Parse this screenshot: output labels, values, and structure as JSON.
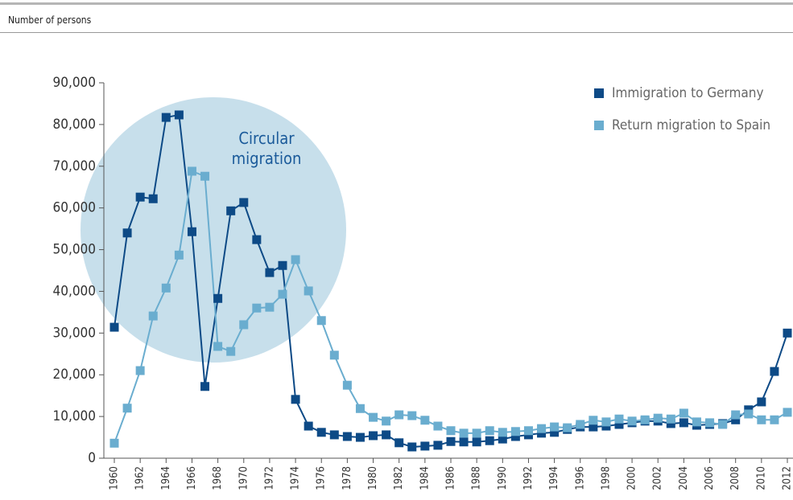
{
  "chart_data": {
    "type": "line",
    "y_axis_label": "Number of persons",
    "annotation": "Circular migration",
    "x": [
      1960,
      1961,
      1962,
      1963,
      1964,
      1965,
      1966,
      1967,
      1968,
      1969,
      1970,
      1971,
      1972,
      1973,
      1974,
      1975,
      1976,
      1977,
      1978,
      1979,
      1980,
      1981,
      1982,
      1983,
      1984,
      1985,
      1986,
      1987,
      1988,
      1989,
      1990,
      1991,
      1992,
      1993,
      1994,
      1995,
      1996,
      1997,
      1998,
      1999,
      2000,
      2001,
      2002,
      2003,
      2004,
      2005,
      2006,
      2007,
      2008,
      2009,
      2010,
      2011,
      2012
    ],
    "series": [
      {
        "name": "Immigration to Germany",
        "color": "#0d4a86",
        "values": [
          31400,
          54000,
          62600,
          62200,
          81700,
          82300,
          54300,
          17200,
          38300,
          59300,
          61300,
          52400,
          44500,
          46200,
          14100,
          7700,
          6200,
          5600,
          5200,
          5000,
          5400,
          5600,
          3700,
          2700,
          2900,
          3100,
          4000,
          3900,
          3900,
          4200,
          4600,
          5200,
          5600,
          6000,
          6200,
          6900,
          7500,
          7500,
          7700,
          8100,
          8500,
          8900,
          8900,
          8300,
          8500,
          7900,
          8100,
          8300,
          9200,
          11600,
          13500,
          20800,
          30000
        ]
      },
      {
        "name": "Return migration to Spain",
        "color": "#6aadcf",
        "values": [
          3600,
          12000,
          21000,
          34100,
          40800,
          48700,
          68800,
          67600,
          26800,
          25600,
          32000,
          36000,
          36200,
          39300,
          47600,
          40100,
          33000,
          24700,
          17500,
          11900,
          9800,
          8900,
          10400,
          10200,
          9100,
          7700,
          6600,
          6000,
          6000,
          6600,
          6200,
          6400,
          6600,
          7100,
          7500,
          7300,
          8100,
          9100,
          8700,
          9400,
          8900,
          9200,
          9600,
          9400,
          10800,
          8700,
          8500,
          8100,
          10400,
          10600,
          9200,
          9200,
          11000
        ]
      }
    ],
    "xlim": [
      1960,
      2012
    ],
    "xticks": [
      1960,
      1962,
      1964,
      1966,
      1968,
      1970,
      1972,
      1974,
      1976,
      1978,
      1980,
      1982,
      1984,
      1986,
      1988,
      1990,
      1992,
      1994,
      1996,
      1998,
      2000,
      2002,
      2004,
      2006,
      2008,
      2010,
      2012
    ],
    "ylim": [
      0,
      90000
    ],
    "yticks": [
      0,
      {
        "value": 10000,
        "label": "10,000"
      },
      {
        "value": 20000,
        "label": "20,000"
      },
      {
        "value": 30000,
        "label": "30,000"
      },
      {
        "value": 40000,
        "label": "40,000"
      },
      {
        "value": 50000,
        "label": "50,000"
      },
      {
        "value": 60000,
        "label": "60,000"
      },
      {
        "value": 70000,
        "label": "70,000"
      },
      {
        "value": 80000,
        "label": "80,000"
      },
      {
        "value": 90000,
        "label": "90,000"
      }
    ],
    "legend": "top-right"
  }
}
